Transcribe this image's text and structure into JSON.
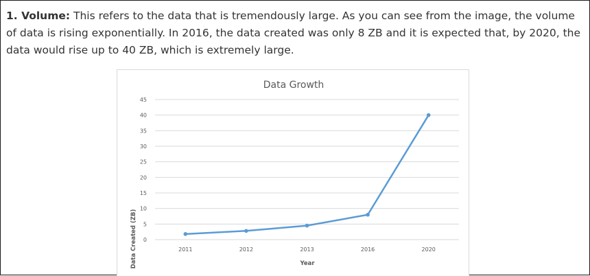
{
  "paragraph": {
    "lead": "1. Volume:",
    "body": " This refers to the data that is tremendously large. As you can see from the image, the volume of data is rising exponentially. In 2016, the data created was only 8 ZB and it is expected that, by 2020, the data would rise up to 40 ZB, which is extremely large."
  },
  "chart_data": {
    "type": "line",
    "title": "Data Growth",
    "xlabel": "Year",
    "ylabel": "Data Created (ZB)",
    "categories": [
      "2011",
      "2012",
      "2013",
      "2016",
      "2020"
    ],
    "series": [
      {
        "values": [
          1.8,
          2.8,
          4.5,
          8,
          40
        ]
      }
    ],
    "ylim": [
      0,
      45
    ],
    "yticks": [
      0,
      5,
      10,
      15,
      20,
      25,
      30,
      35,
      40,
      45
    ],
    "grid": true,
    "legend": "none",
    "colors": {
      "line": "#5b9bd5",
      "grid": "#d9d9d9"
    }
  }
}
